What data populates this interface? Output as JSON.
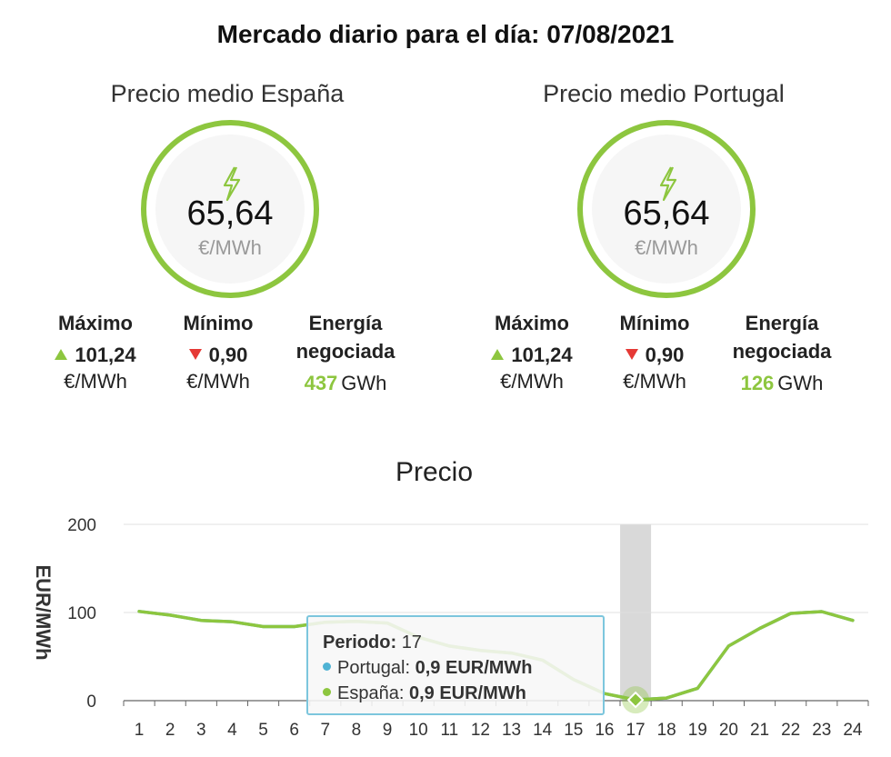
{
  "page_title": "Mercado diario para el día: 07/08/2021",
  "panels": {
    "es": {
      "title": "Precio medio España",
      "price": "65,64",
      "unit": "€/MWh",
      "max_label": "Máximo",
      "max_value": "101,24",
      "max_unit": "€/MWh",
      "min_label": "Mínimo",
      "min_value": "0,90",
      "min_unit": "€/MWh",
      "energy_label_1": "Energía",
      "energy_label_2": "negociada",
      "energy_value": "437",
      "energy_unit": "GWh"
    },
    "pt": {
      "title": "Precio medio Portugal",
      "price": "65,64",
      "unit": "€/MWh",
      "max_label": "Máximo",
      "max_value": "101,24",
      "max_unit": "€/MWh",
      "min_label": "Mínimo",
      "min_value": "0,90",
      "min_unit": "€/MWh",
      "energy_label_1": "Energía",
      "energy_label_2": "negociada",
      "energy_value": "126",
      "energy_unit": "GWh"
    }
  },
  "tooltip": {
    "periodo_label": "Periodo:",
    "periodo_value": "17",
    "portugal_label": "Portugal:",
    "portugal_value": "0,9 EUR/MWh",
    "espana_label": "España:",
    "espana_value": "0,9 EUR/MWh",
    "portugal_color": "#4fb3d4",
    "espana_color": "#8dc63f"
  },
  "colors": {
    "accent": "#8dc63f",
    "down": "#e53935",
    "tooltip_border": "#7cc6dd",
    "highlight_band": "#d9d9d9"
  },
  "chart_data": {
    "type": "line",
    "title": "Precio",
    "xlabel": "",
    "ylabel": "EUR/MWh",
    "ylim": [
      0,
      200
    ],
    "yticks": [
      0,
      100,
      200
    ],
    "categories": [
      "1",
      "2",
      "3",
      "4",
      "5",
      "6",
      "7",
      "8",
      "9",
      "10",
      "11",
      "12",
      "13",
      "14",
      "15",
      "16",
      "17",
      "18",
      "19",
      "20",
      "21",
      "22",
      "23",
      "24"
    ],
    "series": [
      {
        "name": "España",
        "color": "#8dc63f",
        "values": [
          101.24,
          97,
          91,
          89.5,
          84,
          84,
          89,
          90,
          88,
          72,
          62,
          57,
          54,
          46,
          24,
          8,
          0.9,
          3,
          14,
          62,
          82,
          99,
          101,
          91
        ]
      },
      {
        "name": "Portugal",
        "color": "#4fb3d4",
        "values": [
          101.24,
          97,
          91,
          89.5,
          84,
          84,
          89,
          90,
          88,
          72,
          62,
          57,
          54,
          46,
          24,
          8,
          0.9,
          3,
          14,
          62,
          82,
          99,
          101,
          91
        ]
      }
    ],
    "highlighted_category": "17",
    "grid": "horizontal"
  }
}
